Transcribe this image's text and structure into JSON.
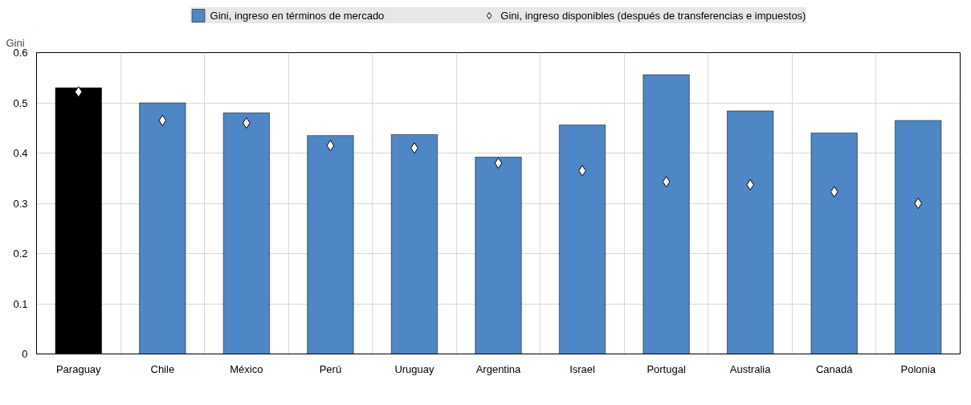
{
  "chart_data": {
    "type": "bar",
    "ylabel": "Gini",
    "categories": [
      "Paraguay",
      "Chile",
      "México",
      "Perú",
      "Uruguay",
      "Argentina",
      "Israel",
      "Portugal",
      "Australia",
      "Canadá",
      "Polonia"
    ],
    "series": [
      {
        "name": "Gini, ingreso en términos de mercado",
        "color": "#4e86c6",
        "colors": [
          "#000000",
          "#4e86c6",
          "#4e86c6",
          "#4e86c6",
          "#4e86c6",
          "#4e86c6",
          "#4e86c6",
          "#4e86c6",
          "#4e86c6",
          "#4e86c6",
          "#4e86c6"
        ],
        "values": [
          0.53,
          0.5,
          0.48,
          0.435,
          0.437,
          0.392,
          0.456,
          0.556,
          0.484,
          0.44,
          0.465
        ]
      },
      {
        "name": "Gini, ingreso disponibles (después de transferencias e impuestos)",
        "type": "scatter",
        "marker": "diamond",
        "color": "#ffffff",
        "values": [
          0.522,
          0.465,
          0.46,
          0.415,
          0.41,
          0.38,
          0.365,
          0.343,
          0.337,
          0.323,
          0.3
        ]
      }
    ],
    "ylim": [
      0,
      0.6
    ],
    "yticks": [
      0,
      0.1,
      0.2,
      0.3,
      0.4,
      0.5,
      0.6
    ],
    "grid": true,
    "legend": "top"
  }
}
